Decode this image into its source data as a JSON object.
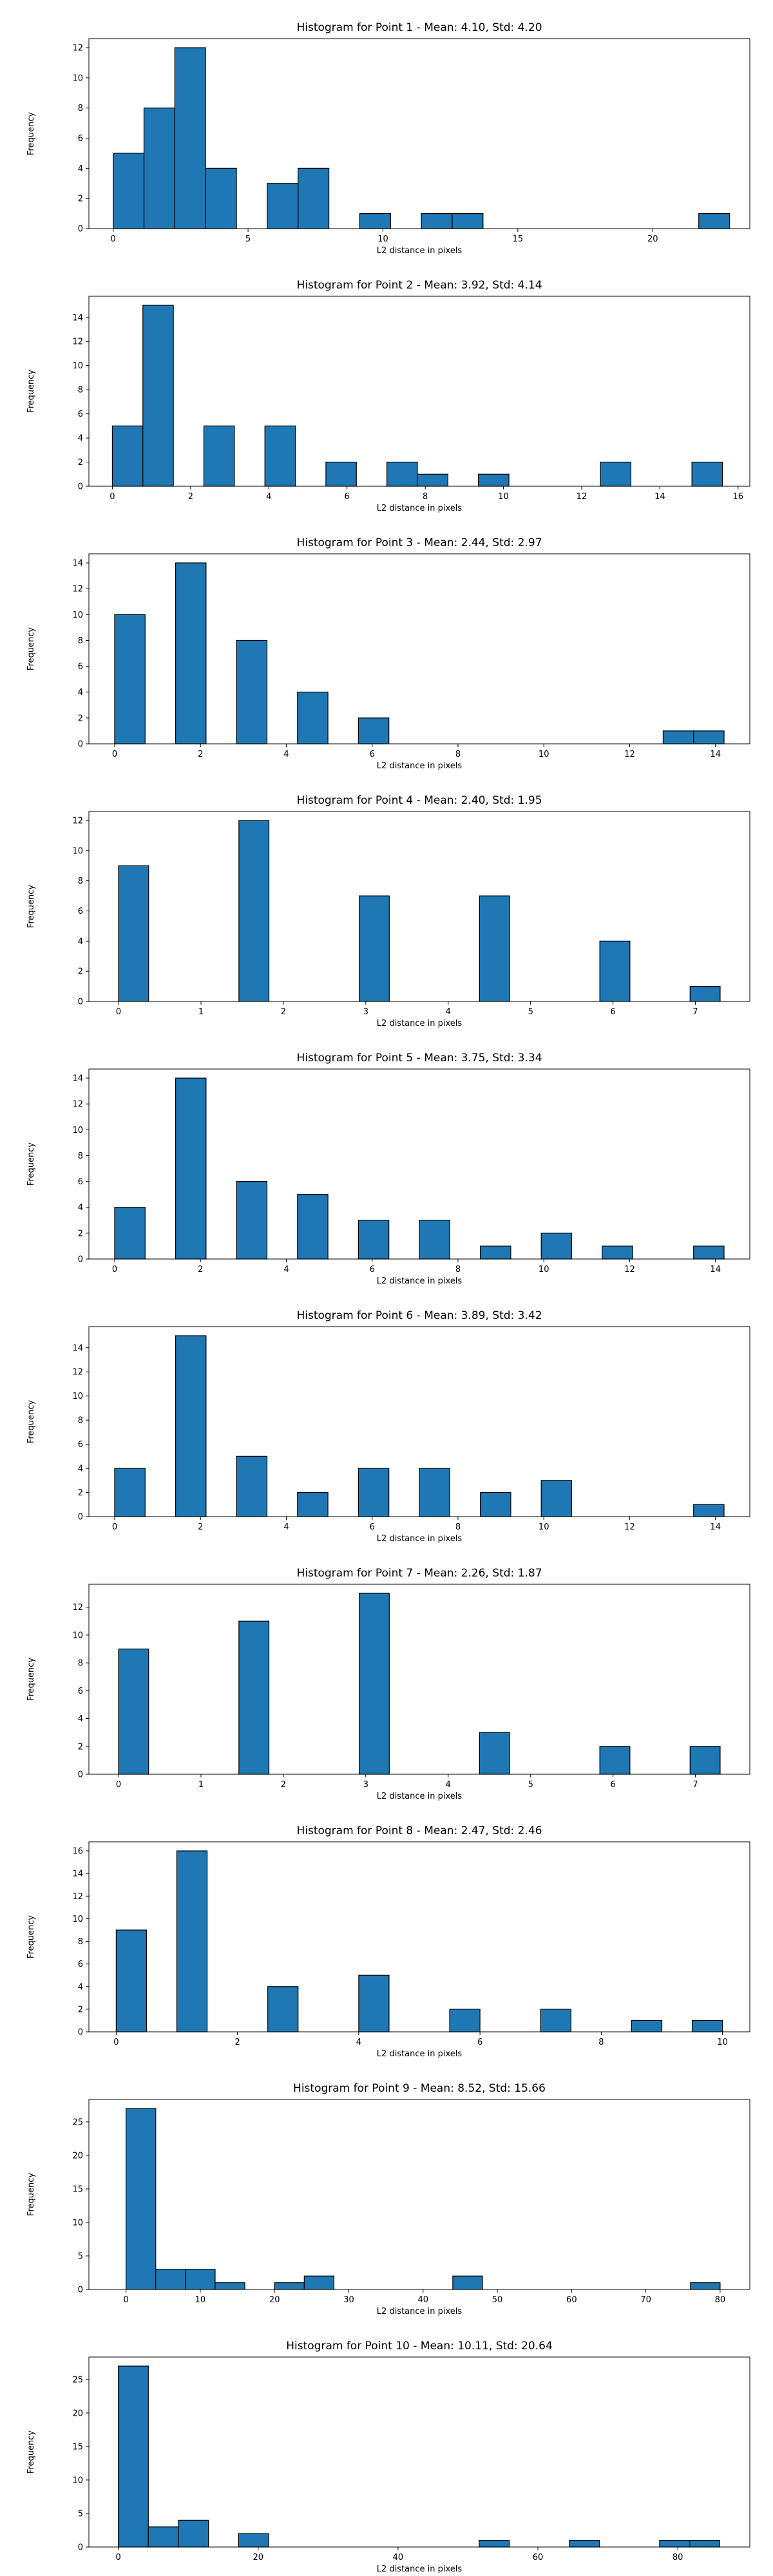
{
  "chart_data": [
    {
      "type": "bar",
      "title": "Histogram for Point 1 - Mean: 4.10, Std: 4.20",
      "xlabel": "L2 distance in pixels",
      "ylabel": "Frequency",
      "bins": {
        "start": 0,
        "width": 1.1425,
        "count": 20
      },
      "values": [
        5,
        8,
        12,
        4,
        0,
        3,
        4,
        0,
        1,
        0,
        1,
        1,
        0,
        0,
        0,
        0,
        0,
        0,
        0,
        1
      ],
      "xlim": [
        -0.9,
        23.6
      ],
      "ylim": [
        0,
        12.6
      ],
      "xticks": [
        0,
        5,
        10,
        15,
        20
      ],
      "yticks": [
        0,
        2,
        4,
        6,
        8,
        10,
        12
      ]
    },
    {
      "type": "bar",
      "title": "Histogram for Point 2 - Mean: 3.92, Std: 4.14",
      "xlabel": "L2 distance in pixels",
      "ylabel": "Frequency",
      "bins": {
        "start": 0,
        "width": 0.78,
        "count": 20
      },
      "values": [
        5,
        15,
        0,
        5,
        0,
        5,
        0,
        2,
        0,
        2,
        1,
        0,
        1,
        0,
        0,
        0,
        2,
        0,
        0,
        2
      ],
      "xlim": [
        -0.6,
        16.3
      ],
      "ylim": [
        0,
        15.75
      ],
      "xticks": [
        0,
        2,
        4,
        6,
        8,
        10,
        12,
        14,
        16
      ],
      "yticks": [
        0,
        2,
        4,
        6,
        8,
        10,
        12,
        14
      ]
    },
    {
      "type": "bar",
      "title": "Histogram for Point 3 - Mean: 2.44, Std: 2.97",
      "xlabel": "L2 distance in pixels",
      "ylabel": "Frequency",
      "bins": {
        "start": 0,
        "width": 0.71,
        "count": 20
      },
      "values": [
        10,
        0,
        14,
        0,
        8,
        0,
        4,
        0,
        2,
        0,
        0,
        0,
        0,
        0,
        0,
        0,
        0,
        0,
        1,
        1
      ],
      "xlim": [
        -0.6,
        14.8
      ],
      "ylim": [
        0,
        14.7
      ],
      "xticks": [
        0,
        2,
        4,
        6,
        8,
        10,
        12,
        14
      ],
      "yticks": [
        0,
        2,
        4,
        6,
        8,
        10,
        12,
        14
      ]
    },
    {
      "type": "bar",
      "title": "Histogram for Point 4 - Mean: 2.40, Std: 1.95",
      "xlabel": "L2 distance in pixels",
      "ylabel": "Frequency",
      "bins": {
        "start": 0,
        "width": 0.365,
        "count": 20
      },
      "values": [
        9,
        0,
        0,
        0,
        12,
        0,
        0,
        0,
        7,
        0,
        0,
        0,
        7,
        0,
        0,
        0,
        4,
        0,
        0,
        1
      ],
      "xlim": [
        -0.36,
        7.66
      ],
      "ylim": [
        0,
        12.6
      ],
      "xticks": [
        0,
        1,
        2,
        3,
        4,
        5,
        6,
        7
      ],
      "yticks": [
        0,
        2,
        4,
        6,
        8,
        10,
        12
      ]
    },
    {
      "type": "bar",
      "title": "Histogram for Point 5 - Mean: 3.75, Std: 3.34",
      "xlabel": "L2 distance in pixels",
      "ylabel": "Frequency",
      "bins": {
        "start": 0,
        "width": 0.71,
        "count": 20
      },
      "values": [
        4,
        0,
        14,
        0,
        6,
        0,
        5,
        0,
        3,
        0,
        3,
        0,
        1,
        0,
        2,
        0,
        1,
        0,
        0,
        1
      ],
      "xlim": [
        -0.6,
        14.8
      ],
      "ylim": [
        0,
        14.7
      ],
      "xticks": [
        0,
        2,
        4,
        6,
        8,
        10,
        12,
        14
      ],
      "yticks": [
        0,
        2,
        4,
        6,
        8,
        10,
        12,
        14
      ]
    },
    {
      "type": "bar",
      "title": "Histogram for Point 6 - Mean: 3.89, Std: 3.42",
      "xlabel": "L2 distance in pixels",
      "ylabel": "Frequency",
      "bins": {
        "start": 0,
        "width": 0.71,
        "count": 20
      },
      "values": [
        4,
        0,
        15,
        0,
        5,
        0,
        2,
        0,
        4,
        0,
        4,
        0,
        2,
        0,
        3,
        0,
        0,
        0,
        0,
        1
      ],
      "xlim": [
        -0.6,
        14.8
      ],
      "ylim": [
        0,
        15.75
      ],
      "xticks": [
        0,
        2,
        4,
        6,
        8,
        10,
        12,
        14
      ],
      "yticks": [
        0,
        2,
        4,
        6,
        8,
        10,
        12,
        14
      ]
    },
    {
      "type": "bar",
      "title": "Histogram for Point 7 - Mean: 2.26, Std: 1.87",
      "xlabel": "L2 distance in pixels",
      "ylabel": "Frequency",
      "bins": {
        "start": 0,
        "width": 0.365,
        "count": 20
      },
      "values": [
        9,
        0,
        0,
        0,
        11,
        0,
        0,
        0,
        13,
        0,
        0,
        0,
        3,
        0,
        0,
        0,
        2,
        0,
        0,
        2
      ],
      "xlim": [
        -0.36,
        7.66
      ],
      "ylim": [
        0,
        13.65
      ],
      "xticks": [
        0,
        1,
        2,
        3,
        4,
        5,
        6,
        7
      ],
      "yticks": [
        0,
        2,
        4,
        6,
        8,
        10,
        12
      ]
    },
    {
      "type": "bar",
      "title": "Histogram for Point 8 - Mean: 2.47, Std: 2.46",
      "xlabel": "L2 distance in pixels",
      "ylabel": "Frequency",
      "bins": {
        "start": 0,
        "width": 0.5,
        "count": 20
      },
      "values": [
        9,
        0,
        16,
        0,
        0,
        4,
        0,
        0,
        5,
        0,
        0,
        2,
        0,
        0,
        2,
        0,
        0,
        1,
        0,
        1
      ],
      "xlim": [
        -0.45,
        10.45
      ],
      "ylim": [
        0,
        16.8
      ],
      "xticks": [
        0,
        2,
        4,
        6,
        8,
        10
      ],
      "yticks": [
        0,
        2,
        4,
        6,
        8,
        10,
        12,
        14,
        16
      ]
    },
    {
      "type": "bar",
      "title": "Histogram for Point 9 - Mean: 8.52, Std: 15.66",
      "xlabel": "L2 distance in pixels",
      "ylabel": "Frequency",
      "bins": {
        "start": 0,
        "width": 4.0,
        "count": 20
      },
      "values": [
        27,
        3,
        3,
        1,
        0,
        1,
        2,
        0,
        0,
        0,
        0,
        2,
        0,
        0,
        0,
        0,
        0,
        0,
        0,
        1
      ],
      "xlim": [
        -5,
        84
      ],
      "ylim": [
        0,
        28.35
      ],
      "xticks": [
        0,
        10,
        20,
        30,
        40,
        50,
        60,
        70,
        80
      ],
      "yticks": [
        0,
        5,
        10,
        15,
        20,
        25
      ]
    },
    {
      "type": "bar",
      "title": "Histogram for Point 10 - Mean: 10.11, Std: 20.64",
      "xlabel": "L2 distance in pixels",
      "ylabel": "Frequency",
      "bins": {
        "start": 0,
        "width": 4.3,
        "count": 20
      },
      "values": [
        27,
        3,
        4,
        0,
        2,
        0,
        0,
        0,
        0,
        0,
        0,
        0,
        1,
        0,
        0,
        1,
        0,
        0,
        1,
        1
      ],
      "xlim": [
        -4.2,
        90.3
      ],
      "ylim": [
        0,
        28.35
      ],
      "xticks": [
        0,
        20,
        40,
        60,
        80
      ],
      "yticks": [
        0,
        5,
        10,
        15,
        20,
        25
      ]
    }
  ],
  "colors": {
    "bar_fill": "#1f77b4",
    "bar_edge": "#000000"
  }
}
